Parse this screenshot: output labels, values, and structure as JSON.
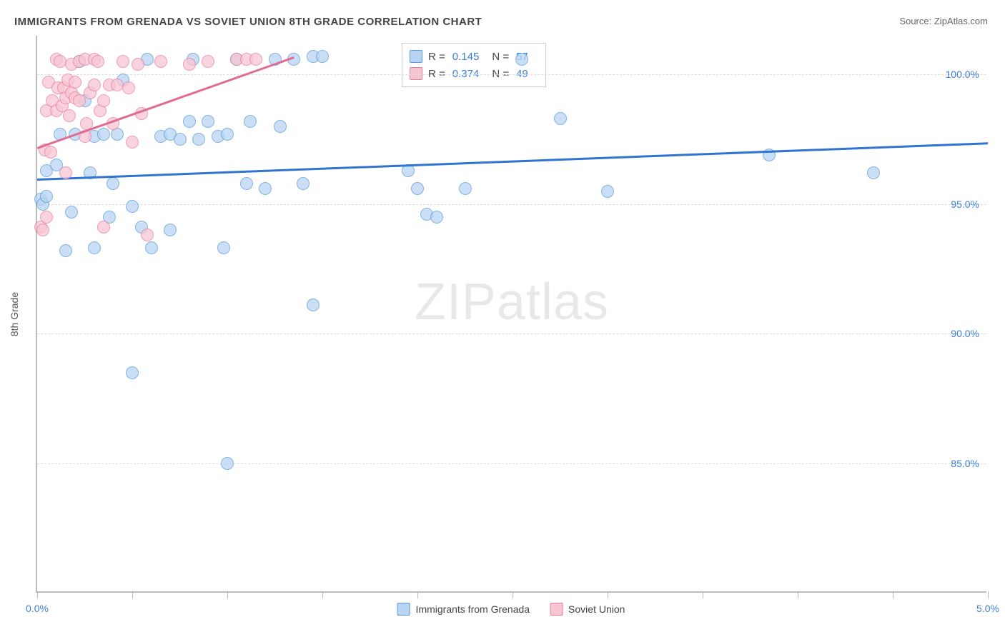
{
  "title": "IMMIGRANTS FROM GRENADA VS SOVIET UNION 8TH GRADE CORRELATION CHART",
  "source_label": "Source:",
  "source_value": "ZipAtlas.com",
  "watermark": {
    "part1": "ZIP",
    "part2": "atlas"
  },
  "chart": {
    "type": "scatter",
    "ylabel": "8th Grade",
    "xlim": [
      0.0,
      5.0
    ],
    "ylim": [
      80.0,
      101.5
    ],
    "x_ticks": [
      0.0,
      5.0
    ],
    "x_tick_labels": [
      "0.0%",
      "5.0%"
    ],
    "x_minor_ticks": [
      0.5,
      1.0,
      1.5,
      2.0,
      2.5,
      3.0,
      3.5,
      4.0,
      4.5
    ],
    "y_grid": [
      85.0,
      90.0,
      95.0,
      100.0
    ],
    "y_tick_labels": [
      "85.0%",
      "90.0%",
      "95.0%",
      "100.0%"
    ],
    "background_color": "#ffffff",
    "grid_color": "#dddddd",
    "axis_color": "#bbbbbb",
    "tick_label_color": "#3b7dd8",
    "label_fontsize": 14,
    "title_fontsize": 15,
    "marker_radius": 9,
    "marker_border": 1.5,
    "series": [
      {
        "name": "Immigrants from Grenada",
        "fill": "#b9d4f3",
        "stroke": "#5a9bd8",
        "line_color": "#2f74d0",
        "R": "0.145",
        "N": "57",
        "trend": {
          "x1": 0.0,
          "y1": 96.0,
          "x2": 5.0,
          "y2": 97.4
        },
        "points": [
          [
            0.02,
            95.2
          ],
          [
            0.03,
            95.0
          ],
          [
            0.05,
            95.3
          ],
          [
            0.05,
            96.3
          ],
          [
            0.1,
            96.5
          ],
          [
            0.12,
            97.7
          ],
          [
            0.15,
            93.2
          ],
          [
            0.18,
            94.7
          ],
          [
            0.2,
            97.7
          ],
          [
            0.22,
            100.5
          ],
          [
            0.25,
            99.0
          ],
          [
            0.28,
            96.2
          ],
          [
            0.3,
            93.3
          ],
          [
            0.3,
            97.6
          ],
          [
            0.35,
            97.7
          ],
          [
            0.38,
            94.5
          ],
          [
            0.4,
            95.8
          ],
          [
            0.42,
            97.7
          ],
          [
            0.45,
            99.8
          ],
          [
            0.5,
            88.5
          ],
          [
            0.5,
            94.9
          ],
          [
            0.55,
            94.1
          ],
          [
            0.58,
            100.6
          ],
          [
            0.6,
            93.3
          ],
          [
            0.65,
            97.6
          ],
          [
            0.7,
            97.7
          ],
          [
            0.7,
            94.0
          ],
          [
            0.75,
            97.5
          ],
          [
            0.8,
            98.2
          ],
          [
            0.82,
            100.6
          ],
          [
            0.85,
            97.5
          ],
          [
            0.9,
            98.2
          ],
          [
            0.95,
            97.6
          ],
          [
            0.98,
            93.3
          ],
          [
            1.0,
            97.7
          ],
          [
            1.0,
            85.0
          ],
          [
            1.05,
            100.6
          ],
          [
            1.1,
            95.8
          ],
          [
            1.12,
            98.2
          ],
          [
            1.2,
            95.6
          ],
          [
            1.25,
            100.6
          ],
          [
            1.28,
            98.0
          ],
          [
            1.35,
            100.6
          ],
          [
            1.4,
            95.8
          ],
          [
            1.45,
            100.7
          ],
          [
            1.45,
            91.1
          ],
          [
            1.5,
            100.7
          ],
          [
            1.95,
            96.3
          ],
          [
            2.0,
            95.6
          ],
          [
            2.05,
            94.6
          ],
          [
            2.1,
            94.5
          ],
          [
            2.25,
            95.6
          ],
          [
            2.55,
            100.6
          ],
          [
            2.75,
            98.3
          ],
          [
            3.85,
            96.9
          ],
          [
            4.4,
            96.2
          ],
          [
            3.0,
            95.5
          ]
        ]
      },
      {
        "name": "Soviet Union",
        "fill": "#f7c6d3",
        "stroke": "#e77ea0",
        "line_color": "#e26b92",
        "R": "0.374",
        "N": "49",
        "trend": {
          "x1": 0.0,
          "y1": 97.2,
          "x2": 1.35,
          "y2": 100.7
        },
        "points": [
          [
            0.02,
            94.1
          ],
          [
            0.03,
            94.0
          ],
          [
            0.04,
            97.1
          ],
          [
            0.05,
            94.5
          ],
          [
            0.05,
            98.6
          ],
          [
            0.06,
            99.7
          ],
          [
            0.07,
            97.0
          ],
          [
            0.08,
            99.0
          ],
          [
            0.1,
            100.6
          ],
          [
            0.1,
            98.6
          ],
          [
            0.11,
            99.5
          ],
          [
            0.12,
            100.5
          ],
          [
            0.13,
            98.8
          ],
          [
            0.14,
            99.5
          ],
          [
            0.15,
            99.1
          ],
          [
            0.15,
            96.2
          ],
          [
            0.16,
            99.8
          ],
          [
            0.17,
            98.4
          ],
          [
            0.18,
            100.4
          ],
          [
            0.18,
            99.3
          ],
          [
            0.2,
            99.7
          ],
          [
            0.2,
            99.1
          ],
          [
            0.22,
            99.0
          ],
          [
            0.22,
            100.5
          ],
          [
            0.25,
            100.6
          ],
          [
            0.25,
            97.6
          ],
          [
            0.26,
            98.1
          ],
          [
            0.28,
            99.3
          ],
          [
            0.3,
            100.6
          ],
          [
            0.3,
            99.6
          ],
          [
            0.32,
            100.5
          ],
          [
            0.33,
            98.6
          ],
          [
            0.35,
            99.0
          ],
          [
            0.35,
            94.1
          ],
          [
            0.38,
            99.6
          ],
          [
            0.4,
            98.1
          ],
          [
            0.42,
            99.6
          ],
          [
            0.45,
            100.5
          ],
          [
            0.48,
            99.5
          ],
          [
            0.5,
            97.4
          ],
          [
            0.53,
            100.4
          ],
          [
            0.55,
            98.5
          ],
          [
            0.58,
            93.8
          ],
          [
            0.65,
            100.5
          ],
          [
            0.8,
            100.4
          ],
          [
            0.9,
            100.5
          ],
          [
            1.05,
            100.6
          ],
          [
            1.1,
            100.6
          ],
          [
            1.15,
            100.6
          ]
        ]
      }
    ]
  },
  "legend": {
    "r_label": "R =",
    "n_label": "N ="
  },
  "bottom_legend": {
    "items": [
      "Immigrants from Grenada",
      "Soviet Union"
    ]
  }
}
